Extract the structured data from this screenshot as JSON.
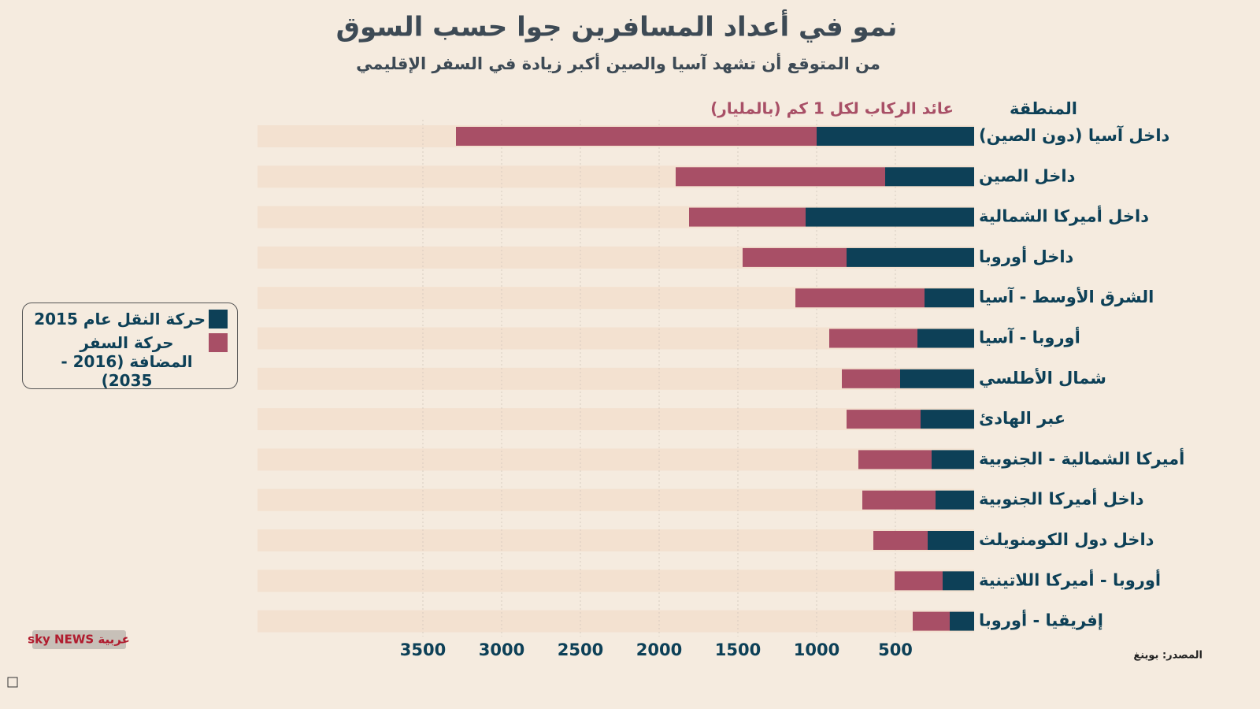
{
  "chart_data": {
    "type": "stacked-barh",
    "title": "نمو في أعداد المسافرين جوا حسب السوق",
    "subtitle": "من المتوقع أن تشهد آسيا والصين أكبر زيادة في السفر الإقليمي",
    "category_header": "المنطقة",
    "x_label": "عائد الركاب لكل 1 كم (بالمليار)",
    "categories": [
      "داخل آسيا (دون الصين)",
      "داخل الصين",
      "داخل أميركا الشمالية",
      "داخل أوروبا",
      "الشرق الأوسط - آسيا",
      "أوروبا - آسيا",
      "شمال الأطلسي",
      "عبر الهادئ",
      "أميركا الشمالية - الجنوبية",
      "داخل أميركا الجنوبية",
      "داخل دول الكومنويلث",
      "أوروبا - أميركا اللاتينية",
      "إفريقيا - أوروبا"
    ],
    "series": [
      {
        "name": "حركة النقل عام 2015",
        "color": "#0d4057",
        "values": [
          1000,
          565,
          1070,
          810,
          315,
          360,
          470,
          340,
          270,
          245,
          295,
          200,
          155
        ]
      },
      {
        "name": "حركة السفر المضافة (2016 - 2035)",
        "color": "#a84f66",
        "values": [
          2290,
          1330,
          740,
          660,
          820,
          560,
          370,
          470,
          465,
          465,
          345,
          305,
          235
        ]
      }
    ],
    "xlim": [
      0,
      4550
    ],
    "xticks": [
      500,
      1000,
      1500,
      2000,
      2500,
      3000,
      3500
    ],
    "grid": true,
    "reversed_x": true,
    "source": "المصدر: بوينغ",
    "logo": "sky NEWS عربية"
  }
}
